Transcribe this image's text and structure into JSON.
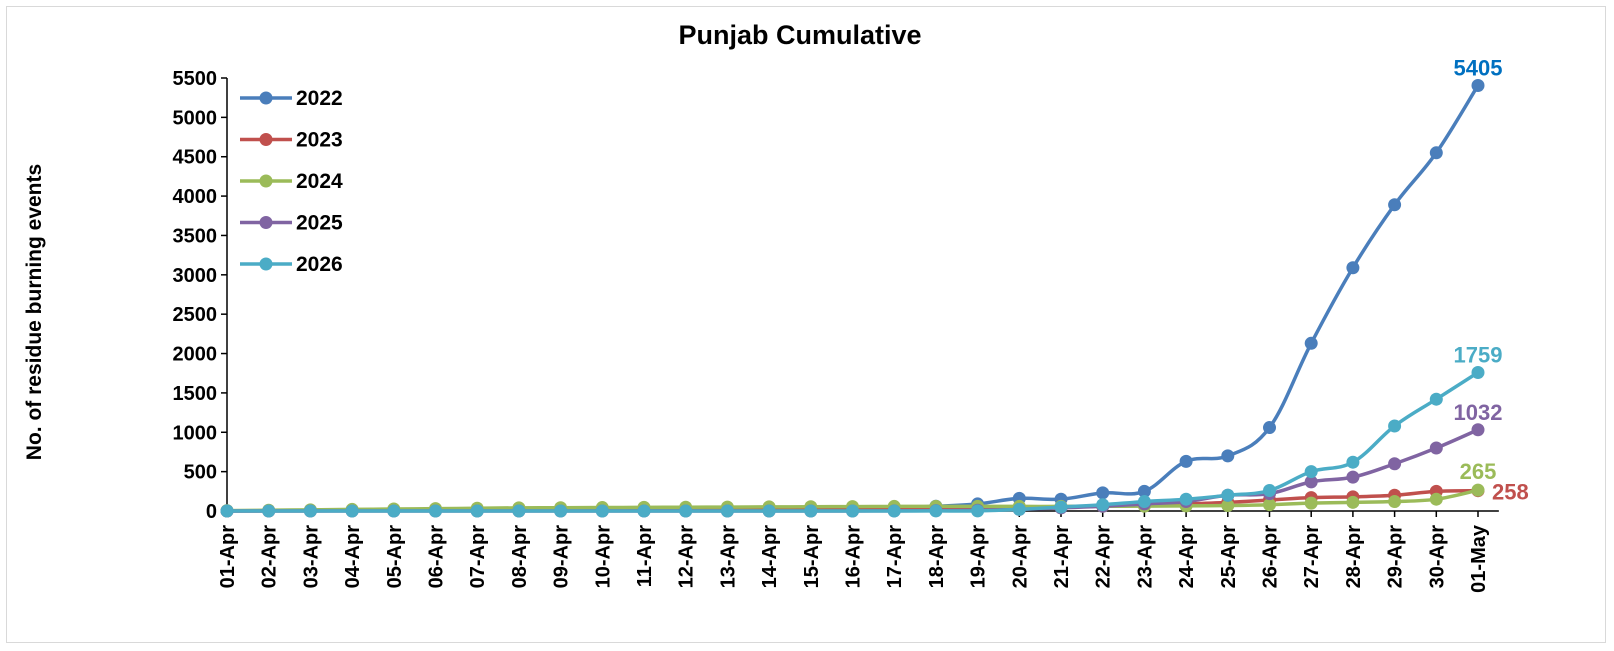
{
  "chart_data": {
    "type": "line",
    "title": "Punjab Cumulative",
    "xlabel": "",
    "ylabel": "No. of residue burning events",
    "ylim": [
      0,
      5500
    ],
    "yticks": [
      0,
      500,
      1000,
      1500,
      2000,
      2500,
      3000,
      3500,
      4000,
      4500,
      5000,
      5500
    ],
    "grid": false,
    "legend_position": "top-left",
    "categories": [
      "01-Apr",
      "02-Apr",
      "03-Apr",
      "04-Apr",
      "05-Apr",
      "06-Apr",
      "07-Apr",
      "08-Apr",
      "09-Apr",
      "10-Apr",
      "11-Apr",
      "12-Apr",
      "13-Apr",
      "14-Apr",
      "15-Apr",
      "16-Apr",
      "17-Apr",
      "18-Apr",
      "19-Apr",
      "20-Apr",
      "21-Apr",
      "22-Apr",
      "23-Apr",
      "24-Apr",
      "25-Apr",
      "26-Apr",
      "27-Apr",
      "28-Apr",
      "29-Apr",
      "30-Apr",
      "01-May"
    ],
    "series": [
      {
        "name": "2022",
        "color": "#4a7ebb",
        "label_color": "#0070c0",
        "end_label": "5405",
        "values": [
          2,
          4,
          6,
          8,
          10,
          12,
          14,
          16,
          18,
          20,
          22,
          24,
          26,
          28,
          30,
          32,
          45,
          60,
          90,
          160,
          150,
          230,
          250,
          630,
          700,
          1060,
          2130,
          3090,
          3890,
          4550,
          5405
        ]
      },
      {
        "name": "2023",
        "color": "#c0504d",
        "label_color": "#c0504d",
        "end_label": "258",
        "values": [
          0,
          1,
          2,
          3,
          4,
          5,
          6,
          7,
          8,
          9,
          10,
          11,
          12,
          13,
          14,
          15,
          20,
          25,
          35,
          45,
          55,
          65,
          75,
          90,
          110,
          140,
          170,
          180,
          200,
          250,
          258
        ]
      },
      {
        "name": "2024",
        "color": "#9bbb59",
        "label_color": "#9bbb59",
        "end_label": "265",
        "values": [
          5,
          10,
          15,
          20,
          25,
          30,
          35,
          40,
          42,
          44,
          46,
          48,
          50,
          52,
          54,
          56,
          58,
          58,
          58,
          58,
          58,
          60,
          62,
          65,
          70,
          80,
          100,
          110,
          120,
          150,
          265
        ]
      },
      {
        "name": "2025",
        "color": "#8064a2",
        "label_color": "#8064a2",
        "end_label": "1032",
        "values": [
          0,
          0,
          0,
          0,
          0,
          0,
          0,
          0,
          0,
          0,
          0,
          0,
          0,
          0,
          0,
          0,
          2,
          5,
          10,
          20,
          40,
          60,
          90,
          120,
          200,
          220,
          370,
          430,
          600,
          800,
          1032
        ]
      },
      {
        "name": "2026",
        "color": "#4bacc6",
        "label_color": "#4bacc6",
        "end_label": "1759",
        "values": [
          0,
          0,
          0,
          0,
          0,
          0,
          0,
          0,
          0,
          0,
          0,
          0,
          0,
          0,
          0,
          0,
          0,
          1,
          2,
          20,
          50,
          80,
          120,
          150,
          200,
          260,
          500,
          620,
          1080,
          1420,
          1759
        ]
      }
    ]
  }
}
